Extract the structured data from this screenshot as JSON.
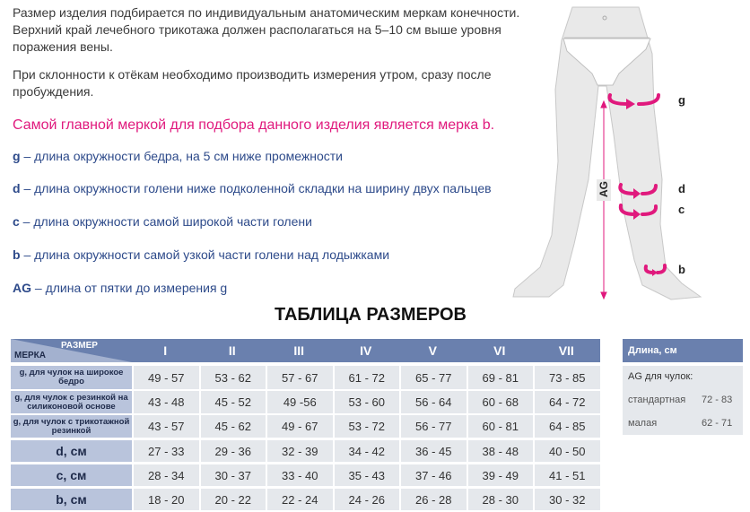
{
  "intro": {
    "paragraph1": "Размер изделия подбирается по индивидуальным анатомическим меркам конечности. Верхний край лечебного трикотажа должен располагаться на 5–10 см выше уровня поражения вены.",
    "paragraph2": "При склонности к отёкам необходимо производить измерения утром, сразу после пробуждения.",
    "highlight": "Самой главной меркой для подбора данного изделия является мерка b."
  },
  "definitions": [
    {
      "key": "g",
      "text": " – длина окружности бедра, на 5 см ниже промежности"
    },
    {
      "key": "d",
      "text": " – длина окружности голени ниже подколенной складки на ширину двух пальцев"
    },
    {
      "key": "c",
      "text": " – длина окружности самой широкой части голени"
    },
    {
      "key": "b",
      "text": " – длина окружности самой узкой части голени над лодыжками"
    },
    {
      "key": "AG",
      "text": " – длина от пятки до измерения g"
    }
  ],
  "figure": {
    "labels": [
      "g",
      "d",
      "c",
      "b"
    ],
    "axis_label": "AG",
    "accent": "#e0197d"
  },
  "table": {
    "title": "ТАБЛИЦА РАЗМЕРОВ",
    "corner_top": "РАЗМЕР",
    "corner_bottom": "МЕРКА",
    "sizes": [
      "I",
      "II",
      "III",
      "IV",
      "V",
      "VI",
      "VII"
    ],
    "rows": [
      {
        "label": "g, для чулок на широкое бедро",
        "values": [
          "49 - 57",
          "53 - 62",
          "57 - 67",
          "61 - 72",
          "65 - 77",
          "69 - 81",
          "73 - 85"
        ]
      },
      {
        "label": "g, для чулок с  резинкой на силиконовой основе",
        "values": [
          "43 - 48",
          "45 - 52",
          "49 -56",
          "53 - 60",
          "56 - 64",
          "60 - 68",
          "64 - 72"
        ]
      },
      {
        "label": "g, для чулок с трикотажной резинкой",
        "values": [
          "43 - 57",
          "45 - 62",
          "49 - 67",
          "53 - 72",
          "56 - 77",
          "60 - 81",
          "64 - 85"
        ]
      },
      {
        "label": "d, см",
        "values": [
          "27 - 33",
          "29 - 36",
          "32 - 39",
          "34 - 42",
          "36 - 45",
          "38 - 48",
          "40 - 50"
        ]
      },
      {
        "label": "c, см",
        "values": [
          "28 - 34",
          "30 - 37",
          "33 - 40",
          "35 - 43",
          "37 - 46",
          "39 - 49",
          "41 - 51"
        ]
      },
      {
        "label": "b, см",
        "values": [
          "18 - 20",
          "20 - 22",
          "22 - 24",
          "24 - 26",
          "26 - 28",
          "28 - 30",
          "30 - 32"
        ]
      }
    ],
    "header_color": "#6a80ae",
    "label_color": "#b9c4dc",
    "cell_color": "#e5e8ec"
  },
  "length_box": {
    "title": "Длина, см",
    "subtitle": "AG для чулок:",
    "items": [
      {
        "name": "стандартная",
        "value": "72 - 83"
      },
      {
        "name": "малая",
        "value": "62 - 71"
      }
    ]
  }
}
